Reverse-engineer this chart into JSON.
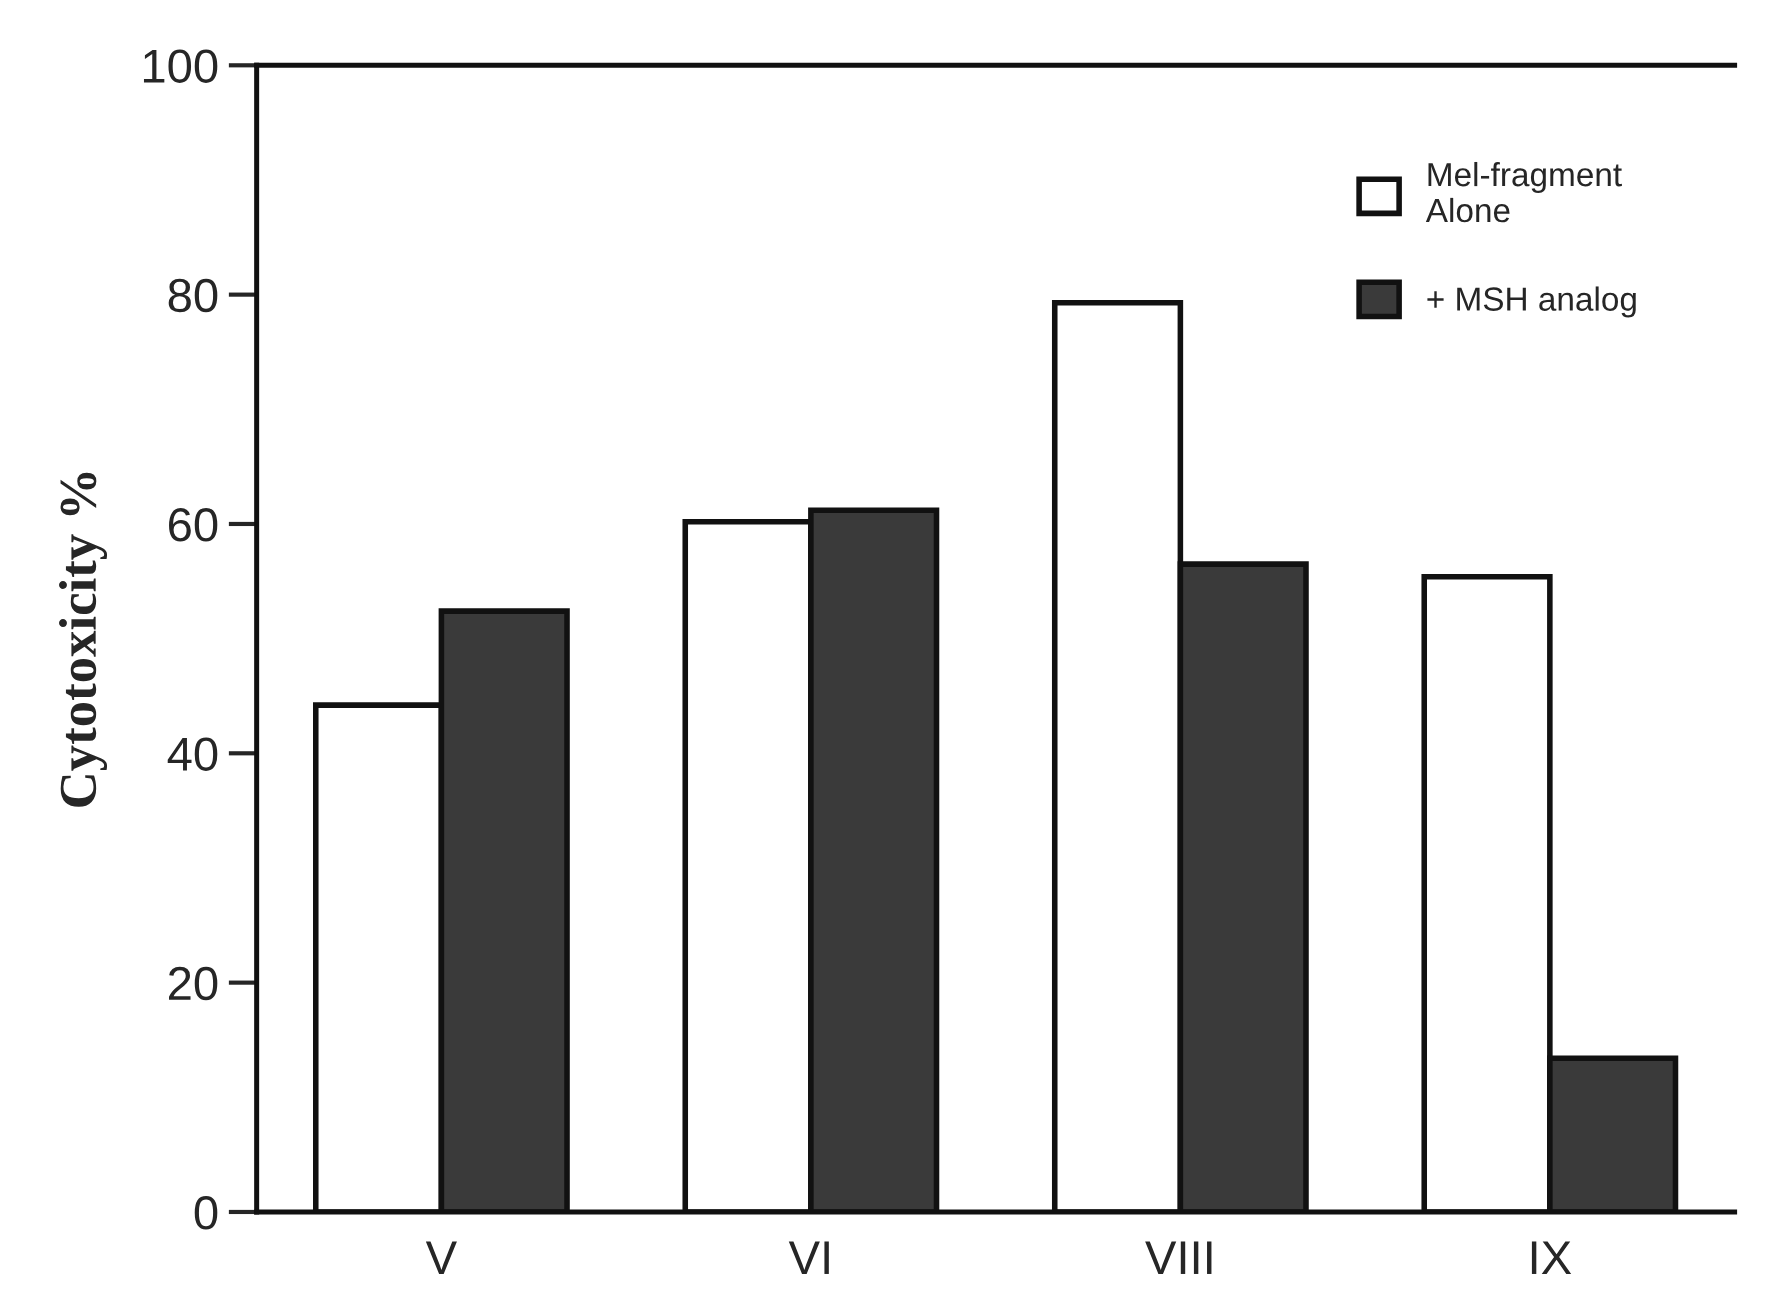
{
  "chart_data": {
    "type": "bar",
    "ylabel": "Cytotoxicity %",
    "categories": [
      "V",
      "VI",
      "VIII",
      "IX"
    ],
    "series": [
      {
        "name": "Mel-fragment\nAlone",
        "color": "#ffffff",
        "values": [
          44.2,
          60.2,
          79.3,
          55.4
        ]
      },
      {
        "name": "+ MSH analog",
        "color": "#3a3a3a",
        "values": [
          52.4,
          61.2,
          56.5,
          13.4
        ]
      }
    ],
    "ylim": [
      0,
      100
    ],
    "yticks": [
      0,
      20,
      40,
      60,
      80,
      100
    ],
    "grid": false,
    "legend": "top right"
  }
}
